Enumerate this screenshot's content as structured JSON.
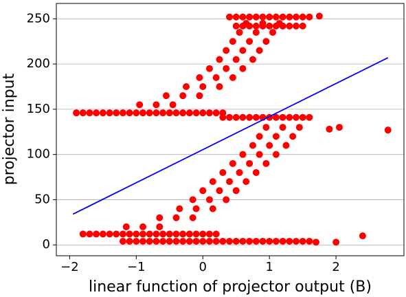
{
  "chart_data": {
    "type": "scatter",
    "xlabel": "linear function of projector output (B)",
    "ylabel": "projector input",
    "xlim": [
      -2.2,
      3.02
    ],
    "ylim": [
      -12,
      267
    ],
    "xticks": [
      {
        "value": -2,
        "label": "−2"
      },
      {
        "value": -1,
        "label": "−1"
      },
      0,
      1,
      2
    ],
    "yticks": [
      0,
      50,
      100,
      150,
      200,
      250
    ],
    "grid": "y",
    "series": [
      {
        "type": "scatter",
        "color": "#ff0000",
        "x": [
          -1.8,
          -1.7,
          -1.6,
          -1.5,
          -1.4,
          -1.3,
          -1.2,
          -1.1,
          -1,
          -0.9,
          -0.8,
          -0.7,
          -0.6,
          -0.5,
          -0.4,
          -0.3,
          -0.2,
          -0.1,
          0,
          0.1,
          0.2,
          -1.2,
          -1.1,
          -1,
          -0.9,
          -0.8,
          -0.7,
          -0.6,
          -0.5,
          -0.4,
          -0.3,
          -0.2,
          -0.1,
          0,
          0.1,
          0.2,
          0.3,
          0.4,
          0.5,
          0.6,
          0.7,
          0.8,
          0.9,
          1,
          1.1,
          1.2,
          1.3,
          1.4,
          1.5,
          1.6,
          -1.9,
          -1.8,
          -1.7,
          -1.6,
          -1.5,
          -1.4,
          -1.3,
          -1.2,
          -1.1,
          -1,
          -0.9,
          -0.8,
          -0.7,
          -0.6,
          -0.5,
          -0.4,
          -0.3,
          -0.2,
          -0.1,
          0,
          0.1,
          0.2,
          0.3,
          0.3,
          0.4,
          0.5,
          0.6,
          0.7,
          0.8,
          0.9,
          1,
          1.1,
          1.2,
          1.3,
          1.4,
          1.5,
          1.6,
          -1.15,
          -0.9,
          -0.65,
          -0.65,
          -0.4,
          -0.15,
          -0.35,
          -0.1,
          0.15,
          -0.15,
          0.1,
          0.35,
          0,
          0.25,
          0.5,
          0.15,
          0.4,
          0.65,
          0.3,
          0.55,
          0.8,
          0.45,
          0.7,
          0.95,
          0.6,
          0.85,
          1.1,
          0.75,
          1,
          1.25,
          0.85,
          1.1,
          1.35,
          0.95,
          1.2,
          1.45,
          -0.95,
          -0.7,
          -0.45,
          -0.55,
          -0.3,
          -0.05,
          -0.25,
          0,
          0.25,
          -0.05,
          0.2,
          0.45,
          0.1,
          0.35,
          0.6,
          0.25,
          0.5,
          0.75,
          0.35,
          0.6,
          0.85,
          0.45,
          0.7,
          0.95,
          0.55,
          0.8,
          1.05,
          0.65,
          0.9,
          1.15,
          0.4,
          0.5,
          0.6,
          0.7,
          0.8,
          0.9,
          1,
          1.1,
          1.2,
          1.3,
          1.4,
          1.5,
          1.6,
          0.5,
          0.6,
          0.7,
          0.8,
          0.9,
          1,
          1.1,
          1.2,
          1.3,
          1.4,
          1.5,
          2.78,
          2.4,
          2,
          2.05,
          1.9,
          1.75,
          1.7
        ],
        "values": [
          12,
          12,
          12,
          12,
          12,
          12,
          12,
          12,
          12,
          12,
          12,
          12,
          12,
          12,
          12,
          12,
          12,
          12,
          12,
          12,
          12,
          4,
          4,
          4,
          4,
          4,
          4,
          4,
          4,
          4,
          4,
          4,
          4,
          4,
          4,
          4,
          4,
          4,
          4,
          4,
          4,
          4,
          4,
          4,
          4,
          4,
          4,
          4,
          4,
          4,
          146,
          146,
          146,
          146,
          146,
          146,
          146,
          146,
          146,
          146,
          146,
          146,
          146,
          146,
          146,
          146,
          146,
          146,
          146,
          146,
          146,
          146,
          146,
          141,
          141,
          141,
          141,
          141,
          141,
          141,
          141,
          141,
          141,
          141,
          141,
          141,
          141,
          20,
          20,
          20,
          30,
          30,
          30,
          40,
          40,
          40,
          50,
          50,
          50,
          60,
          60,
          60,
          70,
          70,
          70,
          80,
          80,
          80,
          90,
          90,
          90,
          100,
          100,
          100,
          110,
          110,
          110,
          120,
          120,
          120,
          130,
          130,
          130,
          155,
          155,
          155,
          165,
          165,
          165,
          175,
          175,
          175,
          185,
          185,
          185,
          195,
          195,
          195,
          205,
          205,
          205,
          215,
          215,
          215,
          225,
          225,
          225,
          235,
          235,
          235,
          245,
          245,
          245,
          252,
          252,
          252,
          252,
          252,
          252,
          252,
          252,
          252,
          252,
          252,
          252,
          252,
          242,
          242,
          242,
          242,
          242,
          242,
          242,
          242,
          242,
          242,
          242,
          127,
          10,
          3,
          130,
          128,
          253,
          3
        ]
      },
      {
        "type": "line",
        "color": "#0000ff",
        "x": [
          -1.95,
          2.78
        ],
        "values": [
          34,
          207
        ]
      }
    ]
  }
}
